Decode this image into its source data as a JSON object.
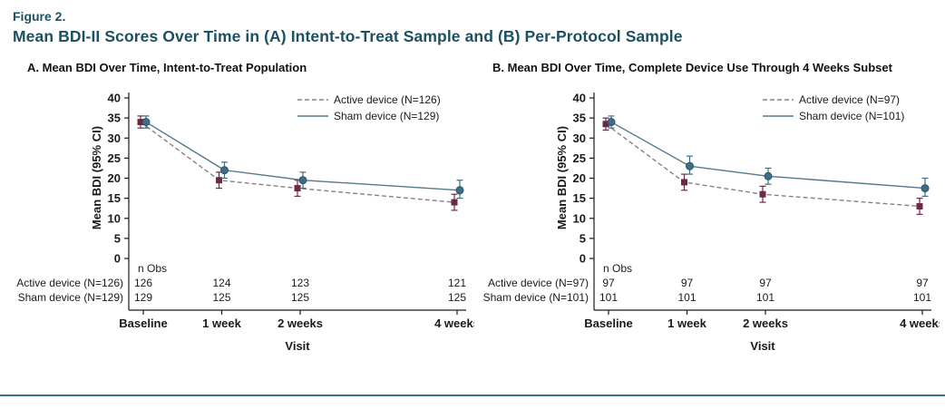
{
  "header": {
    "figure_label": "Figure 2.",
    "title": "Mean BDI-II Scores Over Time in (A) Intent-to-Treat Sample and (B) Per-Protocol Sample"
  },
  "colors": {
    "heading_teal": "#1b5162",
    "divider_teal": "#2f7386",
    "axis_text": "#1a1a1a",
    "active_line": "#8b7f86",
    "active_marker": "#6d2847",
    "sham_line": "#54788c",
    "sham_marker": "#3e6d84",
    "sham_marker_edge": "#27566b"
  },
  "chart_data": [
    {
      "type": "line",
      "title": "A. Mean BDI Over Time, Intent-to-Treat Population",
      "xlabel": "Visit",
      "ylabel": "Mean BDI (95% CI)",
      "ylim": [
        0,
        40
      ],
      "ytick_step": 5,
      "grid": false,
      "legend_position": "top-right",
      "categories": [
        "Baseline",
        "1 week",
        "2 weeks",
        "4 weeks"
      ],
      "x_weeks": [
        0,
        1,
        2,
        4
      ],
      "n_obs_header": "n Obs",
      "series": [
        {
          "name": "Active device (N=126)",
          "line_style": "dashed",
          "line_color": "#8b7f86",
          "marker": "square",
          "marker_color": "#6d2847",
          "values": [
            34,
            19.5,
            17.5,
            14
          ],
          "ci_low": [
            32.5,
            17.5,
            15.5,
            12
          ],
          "ci_high": [
            35.5,
            21.5,
            19.5,
            16
          ],
          "n_obs": [
            126,
            124,
            123,
            121
          ]
        },
        {
          "name": "Sham device (N=129)",
          "line_style": "solid",
          "line_color": "#54788c",
          "marker": "circle",
          "marker_color": "#3e6d84",
          "values": [
            34,
            22,
            19.5,
            17
          ],
          "ci_low": [
            32.5,
            20,
            17.5,
            15
          ],
          "ci_high": [
            35.5,
            24,
            21.5,
            19.5
          ],
          "n_obs": [
            129,
            125,
            125,
            125
          ]
        }
      ]
    },
    {
      "type": "line",
      "title": "B. Mean BDI Over Time, Complete Device Use Through 4 Weeks Subset",
      "xlabel": "Visit",
      "ylabel": "Mean BDI (95% CI)",
      "ylim": [
        0,
        40
      ],
      "ytick_step": 5,
      "grid": false,
      "legend_position": "top-right",
      "categories": [
        "Baseline",
        "1 week",
        "2 weeks",
        "4 weeks"
      ],
      "x_weeks": [
        0,
        1,
        2,
        4
      ],
      "n_obs_header": "n Obs",
      "series": [
        {
          "name": "Active device (N=97)",
          "line_style": "dashed",
          "line_color": "#8b7f86",
          "marker": "square",
          "marker_color": "#6d2847",
          "values": [
            33.5,
            19,
            16,
            13
          ],
          "ci_low": [
            32,
            17,
            14,
            11
          ],
          "ci_high": [
            35,
            21,
            18,
            15
          ],
          "n_obs": [
            97,
            97,
            97,
            97
          ]
        },
        {
          "name": "Sham device (N=101)",
          "line_style": "solid",
          "line_color": "#54788c",
          "marker": "circle",
          "marker_color": "#3e6d84",
          "values": [
            34,
            23,
            20.5,
            17.5
          ],
          "ci_low": [
            32.5,
            21,
            18.5,
            15.5
          ],
          "ci_high": [
            35.5,
            25.5,
            22.5,
            20
          ],
          "n_obs": [
            101,
            101,
            101,
            101
          ]
        }
      ]
    }
  ]
}
